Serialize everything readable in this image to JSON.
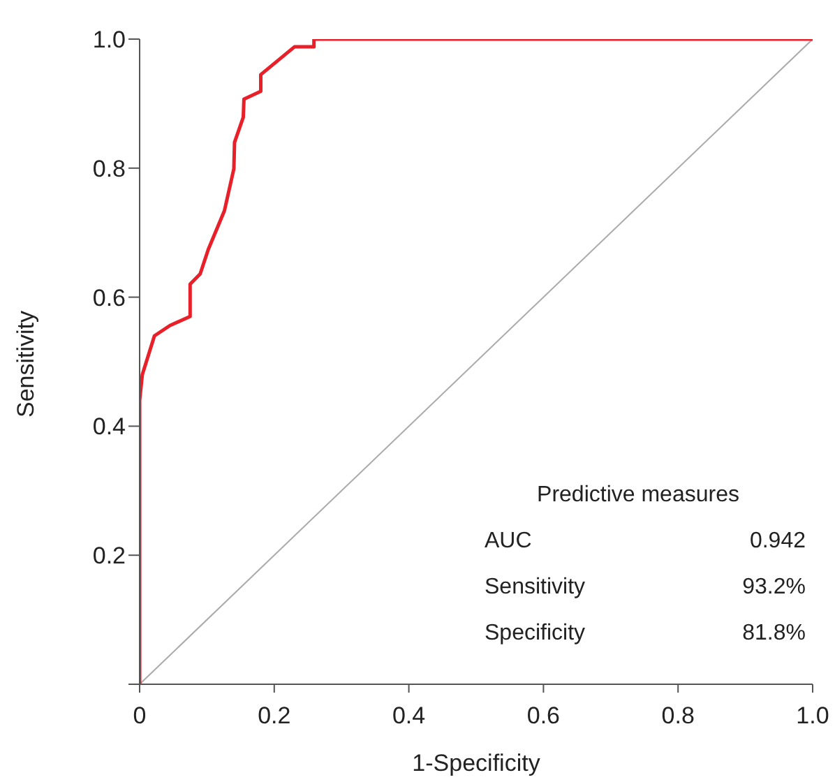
{
  "chart_data": {
    "type": "line",
    "xlabel": "1-Specificity",
    "ylabel": "Sensitivity",
    "xlim": [
      0,
      1
    ],
    "ylim": [
      0,
      1
    ],
    "xticks": [
      0,
      {
        "value": 0.2,
        "label": "0.2"
      },
      {
        "value": 0.4,
        "label": "0.4"
      },
      {
        "value": 0.6,
        "label": "0.6"
      },
      {
        "value": 0.8,
        "label": "0.8"
      },
      {
        "value": 1,
        "label": "1.0"
      }
    ],
    "yticks": [
      {
        "value": 0,
        "label": null
      },
      {
        "value": 0.2,
        "label": "0.2"
      },
      {
        "value": 0.4,
        "label": "0.4"
      },
      {
        "value": 0.6,
        "label": "0.6"
      },
      {
        "value": 0.8,
        "label": "0.8"
      },
      {
        "value": 1,
        "label": "1.0"
      }
    ],
    "grid": false,
    "marker": "none",
    "line_style": "solid",
    "series": [
      {
        "color": "#aaaaaa",
        "x": [
          0,
          1
        ],
        "values": [
          0,
          1
        ]
      },
      {
        "color": "#e8202a",
        "x": [
          0,
          0,
          0.004,
          0.022,
          0.045,
          0.075,
          0.075,
          0.09,
          0.102,
          0.126,
          0.14,
          0.141,
          0.154,
          0.155,
          0.18,
          0.18,
          0.23,
          0.259,
          0.259,
          1
        ],
        "values": [
          0,
          0.44,
          0.48,
          0.54,
          0.556,
          0.57,
          0.62,
          0.636,
          0.674,
          0.734,
          0.799,
          0.84,
          0.879,
          0.907,
          0.919,
          0.945,
          0.988,
          0.988,
          1,
          1
        ]
      }
    ],
    "annotations": [
      "Predictive measures",
      "AUC",
      "0.942",
      "Sensitivity",
      "93.2%",
      "Specificity",
      "81.8%"
    ]
  }
}
